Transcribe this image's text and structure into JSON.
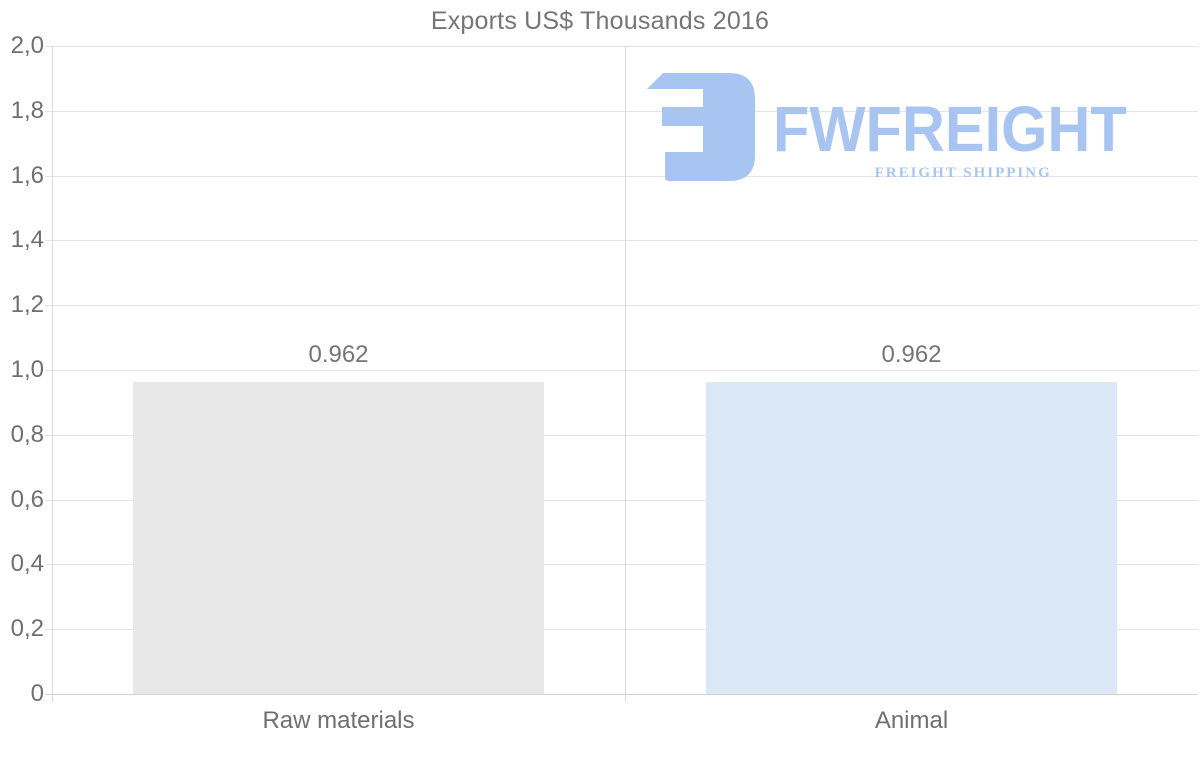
{
  "chart_data": {
    "type": "bar",
    "title": "Exports US$ Thousands 2016",
    "categories": [
      "Raw materials",
      "Animal"
    ],
    "values": [
      0.962,
      0.962
    ],
    "value_labels": [
      "0.962",
      "0.962"
    ],
    "bar_colors": [
      "#e8e8e8",
      "#dae8f8"
    ],
    "ylim": [
      0,
      2
    ],
    "ytick_values": [
      0,
      0.2,
      0.4,
      0.6,
      0.8,
      1.0,
      1.2,
      1.4,
      1.6,
      1.8,
      2.0
    ],
    "ytick_labels": [
      "0",
      "0,2",
      "0,4",
      "0,6",
      "0,8",
      "1,0",
      "1,2",
      "1,4",
      "1,6",
      "1,8",
      "2,0"
    ],
    "xlabel": "",
    "ylabel": "",
    "grid": true,
    "legend_position": "none"
  },
  "watermark": {
    "brand": "FWFREIGHT",
    "tagline": "FREIGHT SHIPPING",
    "logo_mark": "fwfreight-logo-mark",
    "color": "#a8c5f1"
  },
  "colors": {
    "title_text": "#757575",
    "axis_text": "#6f6f6f",
    "gridline": "#e4e4e4",
    "axis_line": "#d2d2d2",
    "divider_line": "#d9d9d9"
  }
}
